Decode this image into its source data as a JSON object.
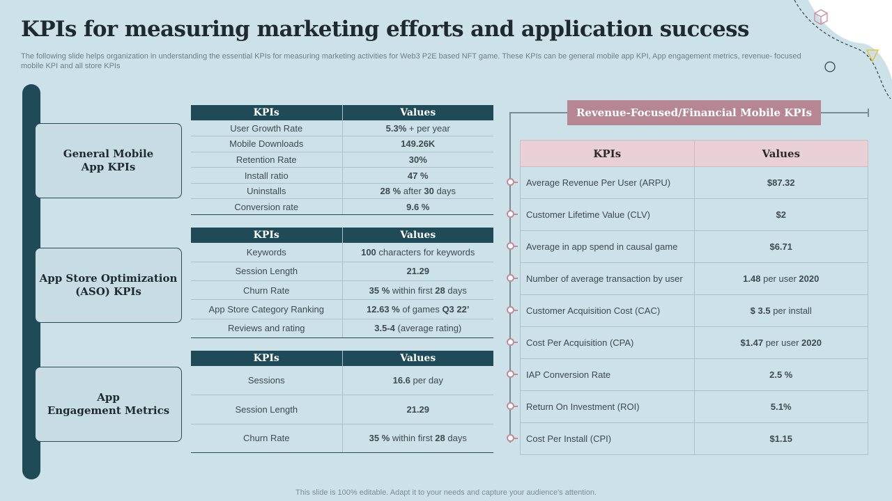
{
  "title": "KPIs for measuring marketing efforts and application success",
  "subtitle": "The following slide helps organization in understanding the essential KPIs for measuring marketing activities for Web3 P2E based NFT game. These KPIs can be general mobile app KPI, App engagement metrics, revenue- focused mobile KPI and all store KPIs",
  "categories": [
    {
      "line1": "General Mobile",
      "line2": "App KPIs"
    },
    {
      "line1": "App Store Optimization",
      "line2": "(ASO) KPIs"
    },
    {
      "line1": "App",
      "line2": "Engagement Metrics"
    }
  ],
  "tables": {
    "headers": {
      "kpi": "KPIs",
      "value": "Values"
    },
    "general": [
      {
        "kpi": "User Growth Rate",
        "value_bold": "5.3%",
        "value_rest": " + per year"
      },
      {
        "kpi": "Mobile Downloads",
        "value_bold": "149.26K",
        "value_rest": ""
      },
      {
        "kpi": "Retention Rate",
        "value_bold": "30%",
        "value_rest": ""
      },
      {
        "kpi": "Install ratio",
        "value_bold": "47 %",
        "value_rest": ""
      },
      {
        "kpi": "Uninstalls",
        "value_bold": "28 %",
        "value_rest": " after ",
        "value_bold2": "30",
        "value_rest2": " days"
      },
      {
        "kpi": "Conversion  rate",
        "value_bold": "9.6 %",
        "value_rest": ""
      }
    ],
    "aso": [
      {
        "kpi": "Keywords",
        "value_bold": "100",
        "value_rest": " characters for keywords"
      },
      {
        "kpi": "Session Length",
        "value_bold": "21.29",
        "value_rest": ""
      },
      {
        "kpi": "Churn  Rate",
        "value_bold": "35 %",
        "value_rest": "  within first ",
        "value_bold2": "28",
        "value_rest2": " days"
      },
      {
        "kpi": "App Store Category  Ranking",
        "value_bold": "12.63 %",
        "value_rest": " of games ",
        "value_bold2": "Q3 22’",
        "value_rest2": ""
      },
      {
        "kpi": "Reviews  and rating",
        "value_bold": "3.5-4",
        "value_rest": " (average  rating)"
      }
    ],
    "engagement": [
      {
        "kpi": "Sessions",
        "value_bold": "16.6",
        "value_rest": " per day"
      },
      {
        "kpi": "Session Length",
        "value_bold": "21.29",
        "value_rest": ""
      },
      {
        "kpi": "Churn  Rate",
        "value_bold": "35 %",
        "value_rest": "  within first ",
        "value_bold2": "28",
        "value_rest2": " days"
      }
    ]
  },
  "revenue": {
    "header": "Revenue-Focused/Financial Mobile KPIs",
    "col_kpi": "KPIs",
    "col_value": "Values",
    "rows": [
      {
        "kpi": "Average  Revenue  Per User (ARPU)",
        "value_bold": "$87.32",
        "value_rest": ""
      },
      {
        "kpi": "Customer Lifetime Value (CLV)",
        "value_bold": "$2",
        "value_rest": ""
      },
      {
        "kpi": "Average  in app spend in causal game",
        "value_bold": "$6.71",
        "value_rest": ""
      },
      {
        "kpi": "Number of average  transaction  by user",
        "value_bold": "1.48",
        "value_rest": " per user ",
        "value_bold2": "2020"
      },
      {
        "kpi": "Customer Acquisition Cost (CAC)",
        "value_bold": "$ 3.5",
        "value_rest": " per install"
      },
      {
        "kpi": "Cost Per Acquisition (CPA)",
        "value_bold": "$1.47",
        "value_rest": "  per user ",
        "value_bold2": "2020"
      },
      {
        "kpi": "IAP Conversion  Rate",
        "value_bold": "2.5 %",
        "value_rest": ""
      },
      {
        "kpi": "Return On Investment  (ROI)",
        "value_bold": "5.1%",
        "value_rest": ""
      },
      {
        "kpi": "Cost Per Install (CPI)",
        "value_bold": "$1.15",
        "value_rest": ""
      }
    ]
  },
  "footer": "This slide is 100% editable. Adapt it to your needs and capture your audience's attention.",
  "colors": {
    "background": "#cde2e8",
    "dark_teal": "#1f4a58",
    "rose": "#b68792",
    "rose_light": "#e8d0d6"
  }
}
